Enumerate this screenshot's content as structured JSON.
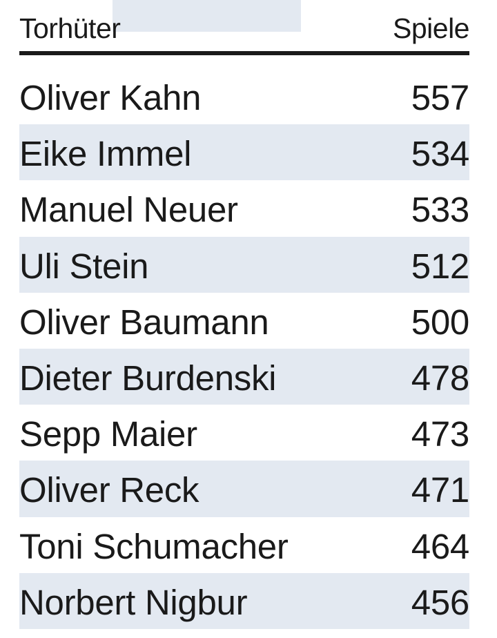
{
  "table": {
    "columns": [
      "Torhüter",
      "Spiele"
    ],
    "rows": [
      {
        "name": "Oliver Kahn",
        "value": "557"
      },
      {
        "name": "Eike Immel",
        "value": "534"
      },
      {
        "name": "Manuel Neuer",
        "value": "533"
      },
      {
        "name": "Uli Stein",
        "value": "512"
      },
      {
        "name": "Oliver Baumann",
        "value": "500"
      },
      {
        "name": "Dieter Burdenski",
        "value": "478"
      },
      {
        "name": "Sepp Maier",
        "value": "473"
      },
      {
        "name": "Oliver Reck",
        "value": "471"
      },
      {
        "name": "Toni Schumacher",
        "value": "464"
      },
      {
        "name": "Norbert Nigbur",
        "value": "456"
      }
    ]
  },
  "chart_data": {
    "type": "table",
    "columns": [
      "Torhüter",
      "Spiele"
    ],
    "categories": [
      "Oliver Kahn",
      "Eike Immel",
      "Manuel Neuer",
      "Uli Stein",
      "Oliver Baumann",
      "Dieter Burdenski",
      "Sepp Maier",
      "Oliver Reck",
      "Toni Schumacher",
      "Norbert Nigbur"
    ],
    "values": [
      557,
      534,
      533,
      512,
      500,
      478,
      473,
      471,
      464,
      456
    ]
  },
  "colors": {
    "text": "#1a1a1a",
    "stripe": "#e3e9f1",
    "rule": "#1a1a1a"
  }
}
